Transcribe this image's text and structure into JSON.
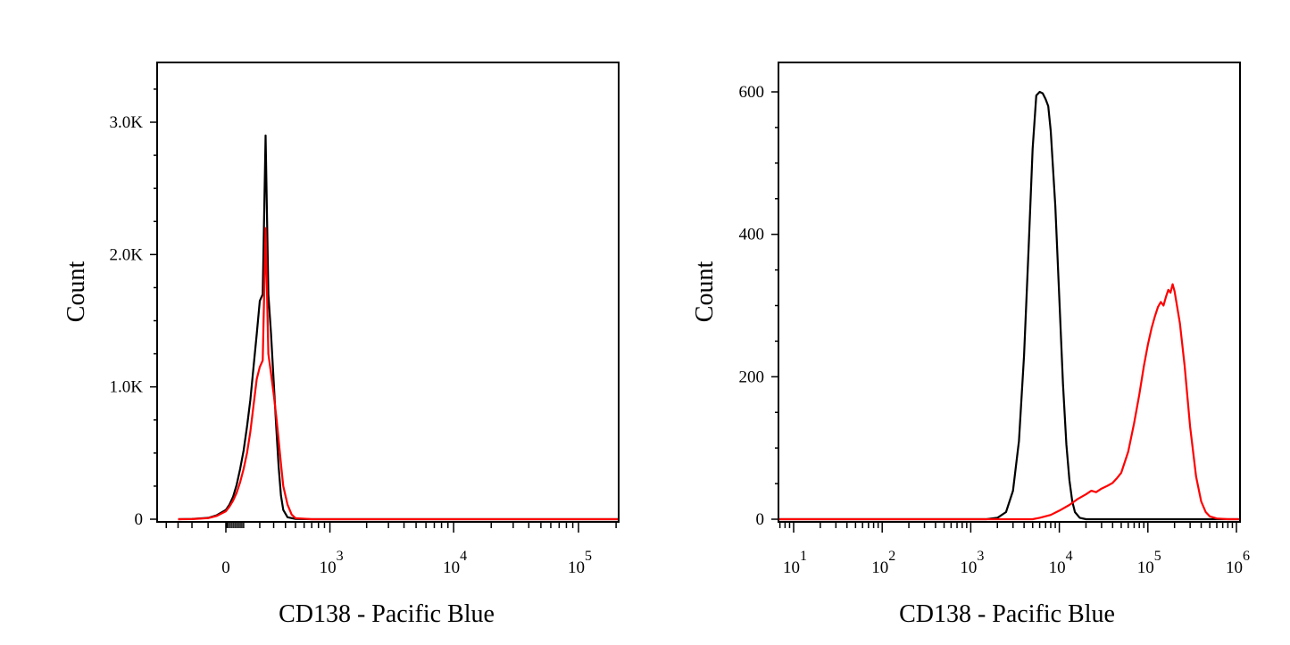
{
  "chart_data": [
    {
      "type": "line",
      "title": "",
      "xlabel": "CD138 - Pacific Blue",
      "ylabel": "Count",
      "x_scale": "biexponential",
      "x_ticks": [
        {
          "value": 0,
          "label": "0"
        },
        {
          "value": 1000,
          "label": "10",
          "exp": "3"
        },
        {
          "value": 10000,
          "label": "10",
          "exp": "4"
        },
        {
          "value": 100000,
          "label": "10",
          "exp": "5"
        }
      ],
      "ylim": [
        0,
        3400
      ],
      "y_ticks": [
        {
          "value": 0,
          "label": "0"
        },
        {
          "value": 1000,
          "label": "1.0K"
        },
        {
          "value": 2000,
          "label": "2.0K"
        },
        {
          "value": 3000,
          "label": "3.0K"
        }
      ],
      "grid": false,
      "series": [
        {
          "color": "#000000",
          "x": [
            -300,
            -200,
            -100,
            -50,
            0,
            20,
            40,
            60,
            80,
            100,
            120,
            140,
            160,
            180,
            200,
            220,
            240,
            260,
            280,
            300,
            320,
            340,
            360,
            380,
            420,
            500,
            700,
            1000,
            10000,
            100000,
            300000
          ],
          "y": [
            0,
            2,
            10,
            30,
            70,
            110,
            170,
            260,
            380,
            520,
            700,
            900,
            1150,
            1400,
            1650,
            1700,
            2900,
            1700,
            1400,
            1050,
            700,
            400,
            180,
            70,
            15,
            2,
            0,
            0,
            0,
            0,
            0
          ]
        },
        {
          "color": "#ff0000",
          "x": [
            -300,
            -200,
            -100,
            -50,
            0,
            20,
            40,
            60,
            80,
            100,
            120,
            140,
            160,
            180,
            200,
            220,
            240,
            260,
            280,
            300,
            320,
            340,
            360,
            380,
            420,
            460,
            500,
            700,
            1000,
            10000,
            100000,
            300000
          ],
          "y": [
            0,
            1,
            8,
            25,
            60,
            95,
            140,
            200,
            280,
            380,
            500,
            660,
            860,
            1060,
            1150,
            1200,
            2200,
            1250,
            1100,
            950,
            780,
            600,
            420,
            250,
            110,
            35,
            8,
            0,
            0,
            0,
            0,
            0
          ]
        }
      ]
    },
    {
      "type": "line",
      "title": "",
      "xlabel": "CD138 - Pacific Blue",
      "ylabel": "Count",
      "x_scale": "log",
      "xlim": [
        5,
        1200000
      ],
      "x_ticks": [
        {
          "value": 10,
          "label": "10",
          "exp": "1"
        },
        {
          "value": 100,
          "label": "10",
          "exp": "2"
        },
        {
          "value": 1000,
          "label": "10",
          "exp": "3"
        },
        {
          "value": 10000,
          "label": "10",
          "exp": "4"
        },
        {
          "value": 100000,
          "label": "10",
          "exp": "5"
        },
        {
          "value": 1000000,
          "label": "10",
          "exp": "6"
        }
      ],
      "ylim": [
        0,
        640
      ],
      "y_ticks": [
        {
          "value": 0,
          "label": "0"
        },
        {
          "value": 200,
          "label": "200"
        },
        {
          "value": 400,
          "label": "400"
        },
        {
          "value": 600,
          "label": "600"
        }
      ],
      "grid": false,
      "series": [
        {
          "color": "#000000",
          "x": [
            5,
            1500,
            2000,
            2500,
            3000,
            3500,
            4000,
            4500,
            5000,
            5500,
            6000,
            6500,
            7000,
            7500,
            8000,
            9000,
            10000,
            11000,
            12000,
            13000,
            14000,
            15000,
            17000,
            20000,
            1200000
          ],
          "y": [
            0,
            0,
            2,
            10,
            40,
            110,
            230,
            380,
            520,
            595,
            600,
            598,
            590,
            580,
            545,
            440,
            310,
            190,
            105,
            55,
            25,
            10,
            2,
            0,
            0
          ]
        },
        {
          "color": "#ff0000",
          "x": [
            5,
            5000,
            6000,
            8000,
            10000,
            13000,
            16000,
            20000,
            23000,
            26000,
            30000,
            35000,
            40000,
            45000,
            50000,
            60000,
            70000,
            80000,
            90000,
            100000,
            110000,
            120000,
            130000,
            140000,
            150000,
            160000,
            170000,
            180000,
            190000,
            200000,
            230000,
            260000,
            300000,
            350000,
            400000,
            450000,
            500000,
            600000,
            800000,
            1200000
          ],
          "y": [
            0,
            0,
            2,
            6,
            12,
            20,
            28,
            35,
            40,
            38,
            43,
            47,
            51,
            58,
            65,
            95,
            135,
            175,
            215,
            245,
            268,
            285,
            298,
            305,
            300,
            312,
            322,
            318,
            330,
            320,
            275,
            215,
            130,
            60,
            25,
            10,
            4,
            1,
            0,
            0
          ]
        }
      ]
    }
  ]
}
